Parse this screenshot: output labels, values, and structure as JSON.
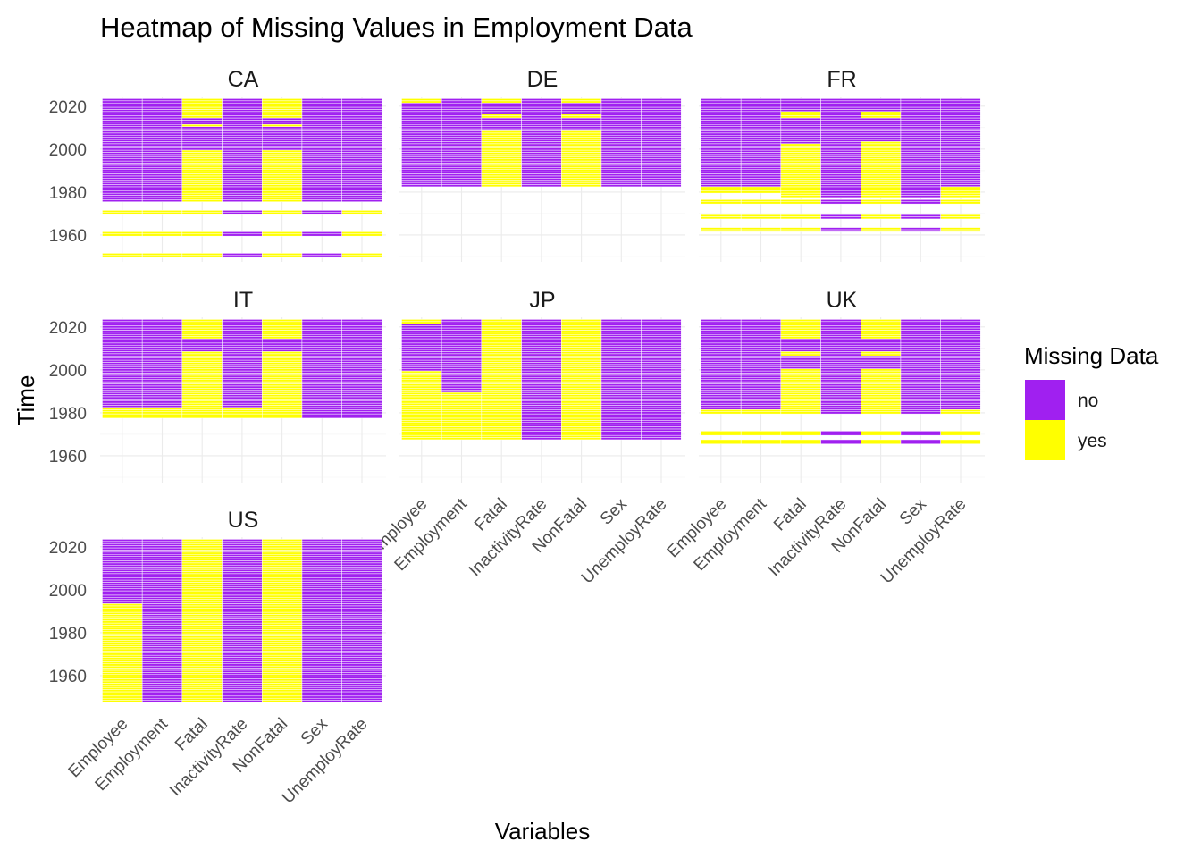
{
  "chart_data": {
    "type": "heatmap",
    "title": "Heatmap of Missing Values in Employment Data",
    "xlabel": "Variables",
    "ylabel": "Time",
    "variables": [
      "Employee",
      "Employment",
      "Fatal",
      "InactivityRate",
      "NonFatal",
      "Sex",
      "UnemployRate"
    ],
    "y_ticks": [
      1960,
      1980,
      2000,
      2020
    ],
    "ylim": [
      1948,
      2024
    ],
    "facet_layout": "3 columns x 3 rows",
    "grid": true,
    "legend": {
      "title": "Missing Data",
      "position": "right",
      "entries": [
        {
          "label": "no",
          "color": "#A020F0"
        },
        {
          "label": "yes",
          "color": "#FFFF00"
        }
      ]
    },
    "facets": [
      {
        "name": "CA",
        "columns": [
          {
            "variable": "Employee",
            "no": [
              [
                1976,
                2023
              ]
            ],
            "yes": [
              [
                1950,
                1951
              ],
              [
                1960,
                1961
              ],
              [
                1970,
                1971
              ]
            ]
          },
          {
            "variable": "Employment",
            "no": [
              [
                1976,
                2023
              ]
            ],
            "yes": [
              [
                1950,
                1951
              ],
              [
                1960,
                1961
              ],
              [
                1970,
                1971
              ]
            ]
          },
          {
            "variable": "Fatal",
            "no": [
              [
                2000,
                2010
              ],
              [
                2012,
                2014
              ]
            ],
            "yes": [
              [
                1950,
                1951
              ],
              [
                1960,
                1961
              ],
              [
                1970,
                1971
              ],
              [
                1976,
                1999
              ],
              [
                2011,
                2011
              ],
              [
                2015,
                2023
              ]
            ]
          },
          {
            "variable": "InactivityRate",
            "no": [
              [
                1950,
                1951
              ],
              [
                1960,
                1961
              ],
              [
                1970,
                1971
              ],
              [
                1976,
                2023
              ]
            ],
            "yes": []
          },
          {
            "variable": "NonFatal",
            "no": [
              [
                2000,
                2010
              ],
              [
                2012,
                2014
              ]
            ],
            "yes": [
              [
                1950,
                1951
              ],
              [
                1960,
                1961
              ],
              [
                1970,
                1971
              ],
              [
                1976,
                1999
              ],
              [
                2011,
                2011
              ],
              [
                2015,
                2023
              ]
            ]
          },
          {
            "variable": "Sex",
            "no": [
              [
                1950,
                1951
              ],
              [
                1960,
                1961
              ],
              [
                1970,
                1971
              ],
              [
                1976,
                2023
              ]
            ],
            "yes": []
          },
          {
            "variable": "UnemployRate",
            "no": [
              [
                1976,
                2023
              ]
            ],
            "yes": [
              [
                1950,
                1951
              ],
              [
                1960,
                1961
              ],
              [
                1970,
                1971
              ]
            ]
          }
        ]
      },
      {
        "name": "DE",
        "columns": [
          {
            "variable": "Employee",
            "no": [
              [
                1983,
                2021
              ]
            ],
            "yes": [
              [
                2022,
                2023
              ]
            ]
          },
          {
            "variable": "Employment",
            "no": [
              [
                1983,
                2023
              ]
            ],
            "yes": []
          },
          {
            "variable": "Fatal",
            "no": [
              [
                2009,
                2014
              ],
              [
                2017,
                2021
              ]
            ],
            "yes": [
              [
                1983,
                2008
              ],
              [
                2015,
                2016
              ],
              [
                2022,
                2023
              ]
            ]
          },
          {
            "variable": "InactivityRate",
            "no": [
              [
                1983,
                2023
              ]
            ],
            "yes": []
          },
          {
            "variable": "NonFatal",
            "no": [
              [
                2009,
                2014
              ],
              [
                2017,
                2021
              ]
            ],
            "yes": [
              [
                1983,
                2008
              ],
              [
                2015,
                2016
              ],
              [
                2022,
                2023
              ]
            ]
          },
          {
            "variable": "Sex",
            "no": [
              [
                1983,
                2023
              ]
            ],
            "yes": []
          },
          {
            "variable": "UnemployRate",
            "no": [
              [
                1983,
                2023
              ]
            ],
            "yes": []
          }
        ]
      },
      {
        "name": "FR",
        "columns": [
          {
            "variable": "Employee",
            "no": [
              [
                1983,
                2023
              ]
            ],
            "yes": [
              [
                1962,
                1963
              ],
              [
                1968,
                1969
              ],
              [
                1975,
                1976
              ],
              [
                1980,
                1982
              ]
            ]
          },
          {
            "variable": "Employment",
            "no": [
              [
                1983,
                2023
              ]
            ],
            "yes": [
              [
                1962,
                1963
              ],
              [
                1968,
                1969
              ],
              [
                1975,
                1976
              ],
              [
                1980,
                1982
              ]
            ]
          },
          {
            "variable": "Fatal",
            "no": [
              [
                2003,
                2014
              ],
              [
                2018,
                2023
              ]
            ],
            "yes": [
              [
                1962,
                1963
              ],
              [
                1968,
                1969
              ],
              [
                1975,
                1976
              ],
              [
                1978,
                2002
              ],
              [
                2015,
                2017
              ]
            ]
          },
          {
            "variable": "InactivityRate",
            "no": [
              [
                1962,
                1963
              ],
              [
                1968,
                1969
              ],
              [
                1975,
                1976
              ],
              [
                1978,
                2023
              ]
            ],
            "yes": []
          },
          {
            "variable": "NonFatal",
            "no": [
              [
                2004,
                2014
              ],
              [
                2018,
                2023
              ]
            ],
            "yes": [
              [
                1962,
                1963
              ],
              [
                1968,
                1969
              ],
              [
                1975,
                1976
              ],
              [
                1978,
                2003
              ],
              [
                2015,
                2017
              ]
            ]
          },
          {
            "variable": "Sex",
            "no": [
              [
                1962,
                1963
              ],
              [
                1968,
                1969
              ],
              [
                1975,
                1976
              ],
              [
                1978,
                2023
              ]
            ],
            "yes": []
          },
          {
            "variable": "UnemployRate",
            "no": [
              [
                1983,
                2023
              ]
            ],
            "yes": [
              [
                1962,
                1963
              ],
              [
                1968,
                1969
              ],
              [
                1975,
                1976
              ],
              [
                1978,
                1982
              ]
            ]
          }
        ]
      },
      {
        "name": "IT",
        "columns": [
          {
            "variable": "Employee",
            "no": [
              [
                1983,
                2023
              ]
            ],
            "yes": [
              [
                1978,
                1982
              ]
            ]
          },
          {
            "variable": "Employment",
            "no": [
              [
                1983,
                2023
              ]
            ],
            "yes": [
              [
                1978,
                1982
              ]
            ]
          },
          {
            "variable": "Fatal",
            "no": [
              [
                2009,
                2014
              ]
            ],
            "yes": [
              [
                1978,
                2008
              ],
              [
                2015,
                2023
              ]
            ]
          },
          {
            "variable": "InactivityRate",
            "no": [
              [
                1983,
                2023
              ]
            ],
            "yes": [
              [
                1978,
                1982
              ]
            ]
          },
          {
            "variable": "NonFatal",
            "no": [
              [
                2009,
                2014
              ]
            ],
            "yes": [
              [
                1978,
                2008
              ],
              [
                2015,
                2023
              ]
            ]
          },
          {
            "variable": "Sex",
            "no": [
              [
                1978,
                2023
              ]
            ],
            "yes": []
          },
          {
            "variable": "UnemployRate",
            "no": [
              [
                1978,
                2023
              ]
            ],
            "yes": []
          }
        ]
      },
      {
        "name": "JP",
        "columns": [
          {
            "variable": "Employee",
            "no": [
              [
                2000,
                2021
              ]
            ],
            "yes": [
              [
                1968,
                1999
              ],
              [
                2022,
                2023
              ]
            ]
          },
          {
            "variable": "Employment",
            "no": [
              [
                1990,
                2023
              ]
            ],
            "yes": [
              [
                1968,
                1989
              ]
            ]
          },
          {
            "variable": "Fatal",
            "no": [],
            "yes": [
              [
                1968,
                2023
              ]
            ]
          },
          {
            "variable": "InactivityRate",
            "no": [
              [
                1968,
                2023
              ]
            ],
            "yes": []
          },
          {
            "variable": "NonFatal",
            "no": [],
            "yes": [
              [
                1968,
                2023
              ]
            ]
          },
          {
            "variable": "Sex",
            "no": [
              [
                1968,
                2023
              ]
            ],
            "yes": []
          },
          {
            "variable": "UnemployRate",
            "no": [
              [
                1968,
                2023
              ]
            ],
            "yes": []
          }
        ]
      },
      {
        "name": "UK",
        "columns": [
          {
            "variable": "Employee",
            "no": [
              [
                1982,
                2023
              ]
            ],
            "yes": [
              [
                1966,
                1967
              ],
              [
                1970,
                1971
              ],
              [
                1980,
                1981
              ]
            ]
          },
          {
            "variable": "Employment",
            "no": [
              [
                1982,
                2023
              ]
            ],
            "yes": [
              [
                1966,
                1967
              ],
              [
                1970,
                1971
              ],
              [
                1980,
                1981
              ]
            ]
          },
          {
            "variable": "Fatal",
            "no": [
              [
                2001,
                2006
              ],
              [
                2009,
                2014
              ]
            ],
            "yes": [
              [
                1966,
                1967
              ],
              [
                1970,
                1971
              ],
              [
                1980,
                2000
              ],
              [
                2007,
                2008
              ],
              [
                2015,
                2023
              ]
            ]
          },
          {
            "variable": "InactivityRate",
            "no": [
              [
                1966,
                1967
              ],
              [
                1970,
                1971
              ],
              [
                1980,
                2023
              ]
            ],
            "yes": []
          },
          {
            "variable": "NonFatal",
            "no": [
              [
                2001,
                2006
              ],
              [
                2009,
                2014
              ]
            ],
            "yes": [
              [
                1966,
                1967
              ],
              [
                1970,
                1971
              ],
              [
                1980,
                2000
              ],
              [
                2007,
                2008
              ],
              [
                2015,
                2023
              ]
            ]
          },
          {
            "variable": "Sex",
            "no": [
              [
                1966,
                1967
              ],
              [
                1970,
                1971
              ],
              [
                1980,
                2023
              ]
            ],
            "yes": []
          },
          {
            "variable": "UnemployRate",
            "no": [
              [
                1982,
                2023
              ]
            ],
            "yes": [
              [
                1966,
                1967
              ],
              [
                1970,
                1971
              ],
              [
                1980,
                1981
              ]
            ]
          }
        ]
      },
      {
        "name": "US",
        "columns": [
          {
            "variable": "Employee",
            "no": [
              [
                1994,
                2023
              ]
            ],
            "yes": [
              [
                1948,
                1993
              ]
            ]
          },
          {
            "variable": "Employment",
            "no": [
              [
                1948,
                2023
              ]
            ],
            "yes": []
          },
          {
            "variable": "Fatal",
            "no": [],
            "yes": [
              [
                1948,
                2023
              ]
            ]
          },
          {
            "variable": "InactivityRate",
            "no": [
              [
                1948,
                2023
              ]
            ],
            "yes": []
          },
          {
            "variable": "NonFatal",
            "no": [],
            "yes": [
              [
                1948,
                2023
              ]
            ]
          },
          {
            "variable": "Sex",
            "no": [
              [
                1948,
                2023
              ]
            ],
            "yes": []
          },
          {
            "variable": "UnemployRate",
            "no": [
              [
                1948,
                2023
              ]
            ],
            "yes": []
          }
        ]
      }
    ]
  }
}
